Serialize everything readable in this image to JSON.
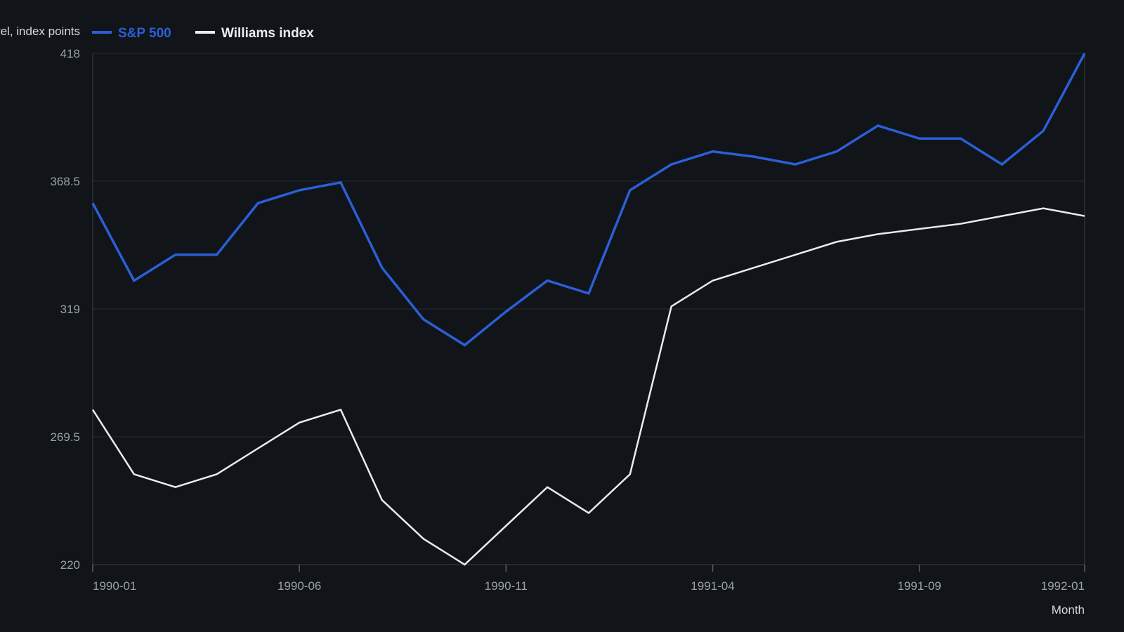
{
  "chart_data": {
    "type": "line",
    "ylabel": "Index level, index points",
    "xlabel": "Month",
    "ylim": [
      220,
      418
    ],
    "y_ticks": [
      "220",
      "269.5",
      "319",
      "368.5",
      "418"
    ],
    "x_ticks": [
      "1990-01",
      "1990-06",
      "1990-11",
      "1991-04",
      "1991-09",
      "1992-01"
    ],
    "x": [
      "1990-01",
      "1990-02",
      "1990-03",
      "1990-04",
      "1990-05",
      "1990-06",
      "1990-07",
      "1990-08",
      "1990-09",
      "1990-10",
      "1990-11",
      "1990-12",
      "1991-01",
      "1991-02",
      "1991-03",
      "1991-04",
      "1991-05",
      "1991-06",
      "1991-07",
      "1991-08",
      "1991-09",
      "1991-10",
      "1991-11",
      "1991-12",
      "1992-01"
    ],
    "series": [
      {
        "name": "S&P 500",
        "color": "#2b5fd9",
        "values": [
          360,
          330,
          340,
          340,
          360,
          365,
          368,
          335,
          315,
          305,
          318,
          330,
          325,
          365,
          375,
          380,
          378,
          375,
          380,
          390,
          385,
          385,
          375,
          388,
          418
        ]
      },
      {
        "name": "Williams index",
        "color": "#ebebeb",
        "values": [
          280,
          255,
          250,
          255,
          265,
          275,
          280,
          245,
          230,
          220,
          235,
          250,
          240,
          255,
          320,
          330,
          335,
          340,
          345,
          348,
          350,
          352,
          355,
          358,
          355
        ]
      }
    ],
    "grid": true,
    "legend_position": "top-left"
  }
}
